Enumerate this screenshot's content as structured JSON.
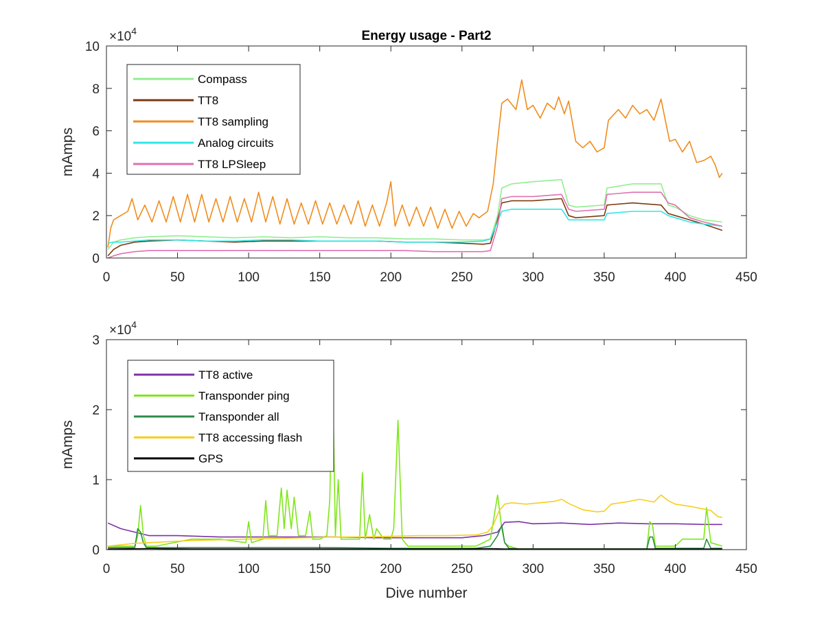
{
  "chart_data": [
    {
      "type": "line",
      "title": "Energy usage - Part2",
      "xlabel": "",
      "ylabel": "mAmps",
      "exponent_label": "×10",
      "exponent_power": "4",
      "xlim": [
        0,
        450
      ],
      "ylim": [
        0,
        100000
      ],
      "xticks": [
        0,
        50,
        100,
        150,
        200,
        250,
        300,
        350,
        400,
        450
      ],
      "xtick_labels": [
        "0",
        "50",
        "100",
        "150",
        "200",
        "250",
        "300",
        "350",
        "400",
        "450"
      ],
      "yticks": [
        0,
        20000,
        40000,
        60000,
        80000,
        100000
      ],
      "ytick_labels": [
        "0",
        "2",
        "4",
        "6",
        "8",
        "10"
      ],
      "legend_position": "top-left",
      "grid": false,
      "series": [
        {
          "name": "Compass",
          "color": "#90ee90",
          "x": [
            1,
            5,
            10,
            20,
            30,
            50,
            70,
            90,
            110,
            130,
            150,
            170,
            190,
            210,
            230,
            250,
            265,
            270,
            275,
            278,
            285,
            300,
            320,
            325,
            330,
            350,
            352,
            370,
            390,
            395,
            400,
            410,
            420,
            433
          ],
          "y": [
            4000,
            7500,
            8500,
            9500,
            10000,
            10500,
            10000,
            9500,
            10000,
            9500,
            10000,
            9500,
            9500,
            9000,
            9000,
            8500,
            8500,
            9000,
            20000,
            33000,
            35000,
            36000,
            37000,
            25000,
            24000,
            25000,
            33000,
            35000,
            35000,
            25000,
            24000,
            20000,
            18000,
            17000
          ]
        },
        {
          "name": "TT8",
          "color": "#7b3a10",
          "x": [
            1,
            5,
            10,
            20,
            30,
            50,
            70,
            90,
            110,
            130,
            150,
            170,
            190,
            210,
            230,
            250,
            265,
            270,
            275,
            278,
            285,
            300,
            320,
            325,
            330,
            350,
            352,
            370,
            390,
            395,
            400,
            410,
            420,
            433
          ],
          "y": [
            1000,
            4000,
            6000,
            7500,
            8000,
            8500,
            8000,
            7500,
            8000,
            8000,
            8000,
            8000,
            8000,
            7500,
            7500,
            7000,
            6500,
            7000,
            18000,
            26000,
            27000,
            27000,
            28000,
            20000,
            19000,
            20000,
            25000,
            26000,
            25000,
            21000,
            20000,
            18000,
            16000,
            13000
          ]
        },
        {
          "name": "TT8 sampling",
          "color": "#f08c1c",
          "x": [
            1,
            3,
            5,
            10,
            15,
            18,
            22,
            27,
            32,
            37,
            42,
            47,
            52,
            57,
            62,
            67,
            72,
            77,
            82,
            87,
            92,
            97,
            102,
            107,
            112,
            117,
            122,
            127,
            132,
            137,
            142,
            147,
            152,
            157,
            162,
            167,
            172,
            177,
            182,
            187,
            192,
            197,
            200,
            203,
            208,
            213,
            218,
            223,
            228,
            233,
            238,
            243,
            248,
            253,
            258,
            262,
            268,
            272,
            275,
            278,
            282,
            288,
            292,
            296,
            300,
            305,
            310,
            315,
            318,
            322,
            325,
            330,
            335,
            340,
            345,
            350,
            353,
            360,
            365,
            370,
            375,
            380,
            385,
            390,
            393,
            396,
            400,
            405,
            410,
            415,
            420,
            425,
            428,
            431,
            433
          ],
          "y": [
            5000,
            14000,
            18000,
            20000,
            22000,
            28000,
            18000,
            25000,
            17000,
            27000,
            17000,
            29000,
            17000,
            30000,
            17000,
            30000,
            17000,
            28000,
            17000,
            29000,
            17000,
            28000,
            17000,
            31000,
            17000,
            29000,
            16000,
            28000,
            16000,
            26000,
            16000,
            27000,
            16000,
            26000,
            16000,
            25000,
            16000,
            27000,
            15000,
            25000,
            15000,
            26000,
            36000,
            15000,
            25000,
            15000,
            24000,
            15000,
            24000,
            14000,
            23000,
            14000,
            22000,
            15000,
            21000,
            19000,
            22000,
            35000,
            55000,
            73000,
            75000,
            70000,
            84000,
            70000,
            72000,
            66000,
            73000,
            70000,
            76000,
            68000,
            74000,
            55000,
            52000,
            55000,
            50000,
            52000,
            65000,
            70000,
            66000,
            72000,
            68000,
            70000,
            65000,
            75000,
            65000,
            55000,
            56000,
            50000,
            55000,
            45000,
            46000,
            48000,
            44000,
            38000,
            40000
          ]
        },
        {
          "name": "Analog circuits",
          "color": "#2ee6e6",
          "x": [
            1,
            5,
            10,
            20,
            30,
            50,
            70,
            90,
            110,
            130,
            150,
            170,
            190,
            210,
            230,
            250,
            265,
            270,
            275,
            278,
            285,
            300,
            320,
            325,
            330,
            350,
            352,
            370,
            390,
            395,
            400,
            410,
            420,
            433
          ],
          "y": [
            7000,
            7500,
            7500,
            8000,
            8500,
            8500,
            8000,
            8000,
            8500,
            8500,
            8000,
            8000,
            8000,
            7500,
            7500,
            7500,
            8000,
            9000,
            17000,
            22000,
            23000,
            23000,
            23000,
            18000,
            18000,
            18000,
            21000,
            22000,
            22000,
            20000,
            19000,
            17000,
            16000,
            15000
          ]
        },
        {
          "name": "TT8 LPSleep",
          "color": "#e070b0",
          "x": [
            1,
            5,
            10,
            20,
            30,
            50,
            70,
            90,
            110,
            130,
            150,
            170,
            190,
            210,
            230,
            250,
            265,
            270,
            275,
            278,
            285,
            300,
            320,
            325,
            330,
            350,
            352,
            370,
            390,
            395,
            400,
            410,
            420,
            433
          ],
          "y": [
            0,
            1000,
            2000,
            3000,
            3500,
            3500,
            3500,
            3500,
            3500,
            3500,
            3500,
            3500,
            3500,
            3500,
            3000,
            3000,
            3000,
            3500,
            15000,
            28000,
            29000,
            29000,
            30000,
            23000,
            22000,
            23000,
            30000,
            31000,
            31000,
            26000,
            25000,
            19000,
            17000,
            15000
          ]
        }
      ]
    },
    {
      "type": "line",
      "title": "",
      "xlabel": "Dive number",
      "ylabel": "mAmps",
      "exponent_label": "×10",
      "exponent_power": "4",
      "xlim": [
        0,
        450
      ],
      "ylim": [
        0,
        30000
      ],
      "xticks": [
        0,
        50,
        100,
        150,
        200,
        250,
        300,
        350,
        400,
        450
      ],
      "xtick_labels": [
        "0",
        "50",
        "100",
        "150",
        "200",
        "250",
        "300",
        "350",
        "400",
        "450"
      ],
      "yticks": [
        0,
        10000,
        20000,
        30000
      ],
      "ytick_labels": [
        "0",
        "1",
        "2",
        "3"
      ],
      "legend_position": "top-left",
      "grid": false,
      "series": [
        {
          "name": "TT8 active",
          "color": "#7e2fa8",
          "x": [
            1,
            10,
            20,
            30,
            50,
            80,
            100,
            130,
            160,
            190,
            220,
            250,
            265,
            275,
            280,
            290,
            300,
            320,
            340,
            360,
            380,
            400,
            420,
            433
          ],
          "y": [
            3800,
            3000,
            2500,
            2000,
            2000,
            1800,
            1800,
            1800,
            1800,
            1700,
            1700,
            1700,
            2000,
            2500,
            3900,
            4000,
            3700,
            3800,
            3600,
            3800,
            3700,
            3700,
            3600,
            3600
          ]
        },
        {
          "name": "Transponder ping",
          "color": "#7fe619",
          "x": [
            1,
            20,
            22,
            24,
            26,
            28,
            35,
            60,
            80,
            98,
            100,
            102,
            110,
            112,
            114,
            120,
            123,
            125,
            127,
            130,
            132,
            135,
            140,
            143,
            145,
            150,
            155,
            157,
            159,
            161,
            163,
            165,
            170,
            178,
            180,
            182,
            185,
            188,
            190,
            195,
            200,
            202,
            205,
            208,
            212,
            220,
            240,
            260,
            270,
            275,
            278,
            280,
            283,
            290,
            380,
            382,
            384,
            386,
            400,
            405,
            420,
            422,
            425,
            433
          ],
          "y": [
            500,
            500,
            2000,
            6300,
            2000,
            500,
            500,
            1500,
            1500,
            1000,
            4000,
            1000,
            1500,
            7000,
            2000,
            2000,
            8800,
            3000,
            8500,
            3000,
            7500,
            2000,
            2000,
            5500,
            1500,
            1500,
            2000,
            7000,
            25500,
            2000,
            10000,
            1500,
            1500,
            1500,
            11000,
            1500,
            5000,
            1500,
            3000,
            1500,
            1500,
            3000,
            18500,
            1500,
            500,
            500,
            500,
            500,
            1500,
            7800,
            3000,
            1000,
            500,
            100,
            100,
            4000,
            3500,
            500,
            500,
            1500,
            1500,
            6000,
            1000,
            500
          ]
        },
        {
          "name": "Transponder all",
          "color": "#2b8a4a",
          "x": [
            1,
            20,
            22,
            24,
            26,
            28,
            60,
            100,
            150,
            200,
            260,
            270,
            275,
            278,
            280,
            283,
            290,
            380,
            382,
            384,
            386,
            420,
            422,
            425,
            433
          ],
          "y": [
            300,
            300,
            3000,
            2500,
            1000,
            300,
            300,
            300,
            300,
            200,
            200,
            500,
            2000,
            3500,
            1000,
            200,
            100,
            100,
            1800,
            1800,
            200,
            200,
            1500,
            200,
            200
          ]
        },
        {
          "name": "TT8 accessing flash",
          "color": "#f7cf1a",
          "x": [
            1,
            20,
            40,
            60,
            80,
            100,
            120,
            140,
            160,
            180,
            200,
            220,
            240,
            260,
            268,
            272,
            276,
            280,
            285,
            295,
            305,
            315,
            320,
            325,
            335,
            345,
            350,
            355,
            365,
            375,
            385,
            390,
            395,
            400,
            410,
            420,
            425,
            430,
            433
          ],
          "y": [
            500,
            900,
            1100,
            1300,
            1400,
            1500,
            1600,
            1700,
            1800,
            1800,
            1900,
            2000,
            2000,
            2100,
            2500,
            3500,
            5500,
            6500,
            6700,
            6500,
            6700,
            6900,
            7200,
            6600,
            5700,
            5400,
            5500,
            6500,
            6800,
            7200,
            6800,
            7800,
            7000,
            6500,
            6200,
            5800,
            5600,
            4700,
            4600
          ]
        },
        {
          "name": "GPS",
          "color": "#000000",
          "x": [
            1,
            30,
            60,
            100,
            150,
            200,
            250,
            270,
            280,
            300,
            350,
            400,
            433
          ],
          "y": [
            100,
            150,
            100,
            100,
            100,
            100,
            100,
            150,
            100,
            100,
            100,
            100,
            100
          ]
        }
      ]
    }
  ]
}
